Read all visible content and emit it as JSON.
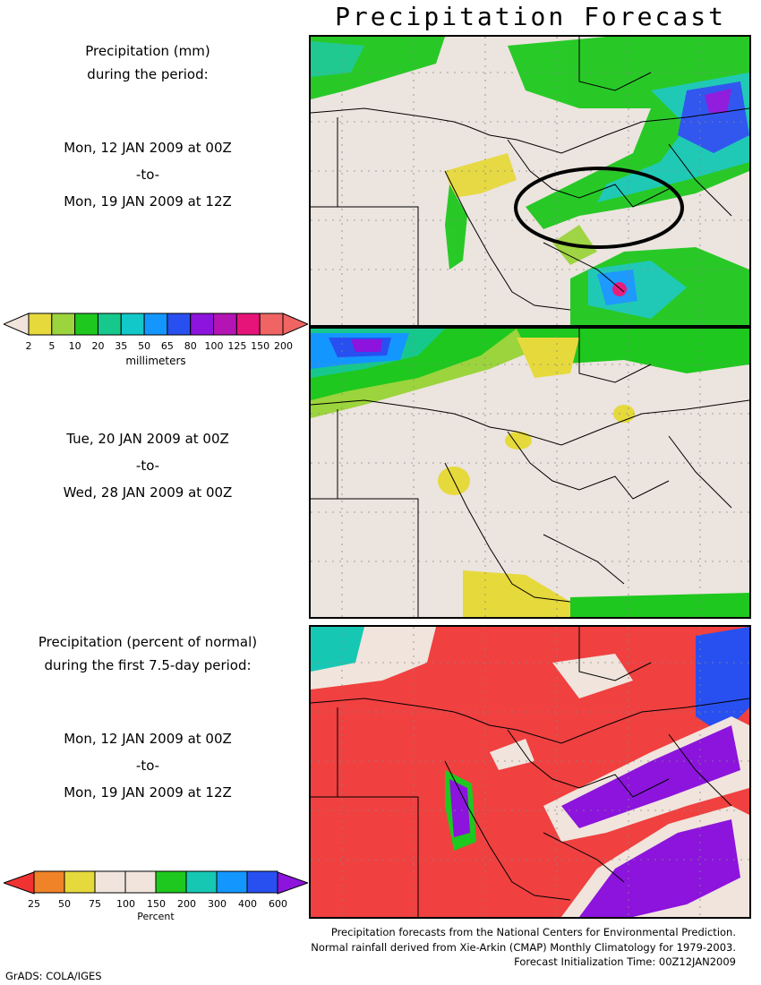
{
  "title": "Precipitation Forecast",
  "panel1": {
    "heading_line1": "Precipitation (mm)",
    "heading_line2": "during the period:",
    "start": "Mon, 12 JAN 2009 at 00Z",
    "to": "-to-",
    "end": "Mon, 19 JAN 2009 at 12Z"
  },
  "panel2": {
    "start": "Tue, 20 JAN 2009 at 00Z",
    "to": "-to-",
    "end": "Wed, 28 JAN 2009 at 00Z"
  },
  "panel3": {
    "heading_line1": "Precipitation (percent of normal)",
    "heading_line2": "during the first 7.5-day period:",
    "start": "Mon, 12 JAN 2009 at 00Z",
    "to": "-to-",
    "end": "Mon, 19 JAN 2009 at 12Z"
  },
  "colorbar_mm": {
    "ticks": [
      "2",
      "5",
      "10",
      "20",
      "35",
      "50",
      "65",
      "80",
      "100",
      "125",
      "150",
      "200"
    ],
    "unit": "millimeters",
    "colors": [
      "#f0e4dc",
      "#e6d93c",
      "#9bd43c",
      "#1ec81e",
      "#16c88c",
      "#12c8c8",
      "#1496ff",
      "#2850f0",
      "#8c14dc",
      "#b414b4",
      "#e61478",
      "#f06464"
    ]
  },
  "colorbar_pct": {
    "ticks": [
      "25",
      "50",
      "75",
      "100",
      "150",
      "200",
      "300",
      "400",
      "600"
    ],
    "unit": "Percent",
    "colors": [
      "#f03232",
      "#f08228",
      "#e6d93c",
      "#f0e4dc",
      "#f0e4dc",
      "#1ec81e",
      "#16c8b4",
      "#1496ff",
      "#2850f0",
      "#8c14dc"
    ]
  },
  "footer": {
    "line1": "Precipitation forecasts from the National Centers for Environmental Prediction.",
    "line2": "Normal rainfall derived from Xie-Arkin (CMAP) Monthly Climatology for 1979-2003.",
    "line3": "Forecast Initialization Time: 00Z12JAN2009"
  },
  "credit": "GrADS: COLA/IGES",
  "colors": {
    "land": "#ece4de",
    "below_normal": "#f04040"
  }
}
